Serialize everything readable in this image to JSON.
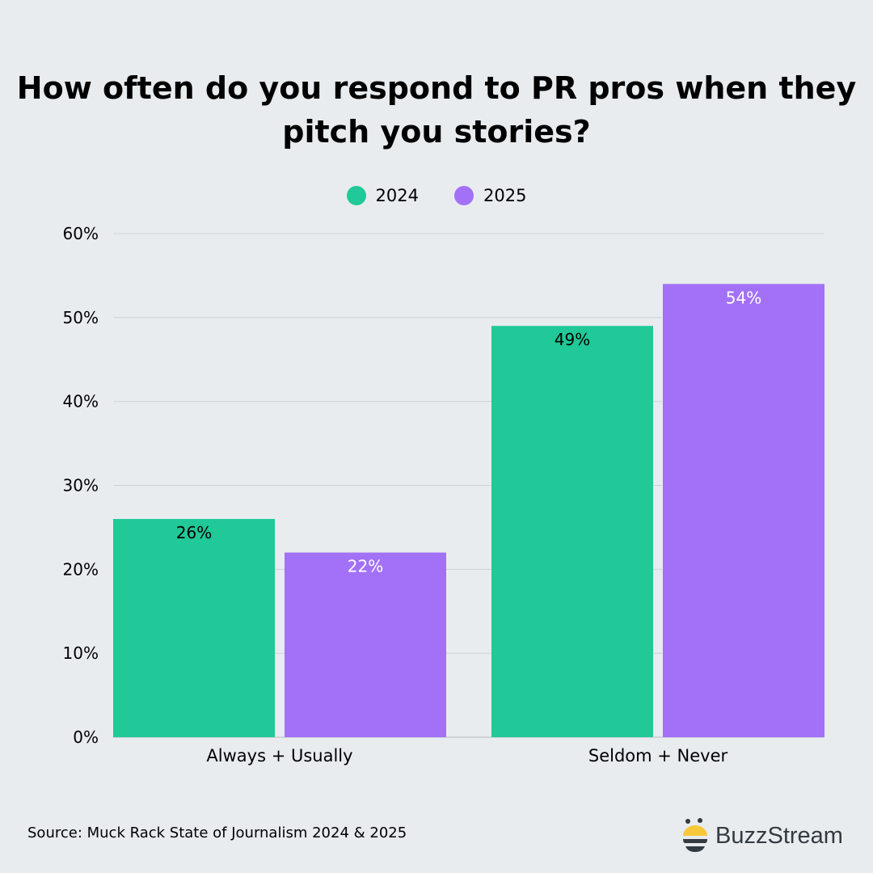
{
  "chart_data": {
    "type": "bar",
    "title": "How often do you respond to PR pros when they pitch you stories?",
    "categories": [
      "Always + Usually",
      "Seldom + Never"
    ],
    "series": [
      {
        "name": "2024",
        "values": [
          26,
          49
        ],
        "color": "#20c997",
        "label_color": "#000000"
      },
      {
        "name": "2025",
        "values": [
          22,
          54
        ],
        "color": "#a371f7",
        "label_color": "#ffffff"
      }
    ],
    "data_labels": [
      [
        "26%",
        "49%"
      ],
      [
        "22%",
        "54%"
      ]
    ],
    "ylim": [
      0,
      60
    ],
    "yticks": [
      "0%",
      "10%",
      "20%",
      "30%",
      "40%",
      "50%",
      "60%"
    ],
    "grid": true,
    "legend_position": "top-center"
  },
  "source": "Source: Muck Rack State of Journalism 2024 & 2025",
  "logo": {
    "text": "BuzzStream",
    "accent": "#f7c83a"
  }
}
